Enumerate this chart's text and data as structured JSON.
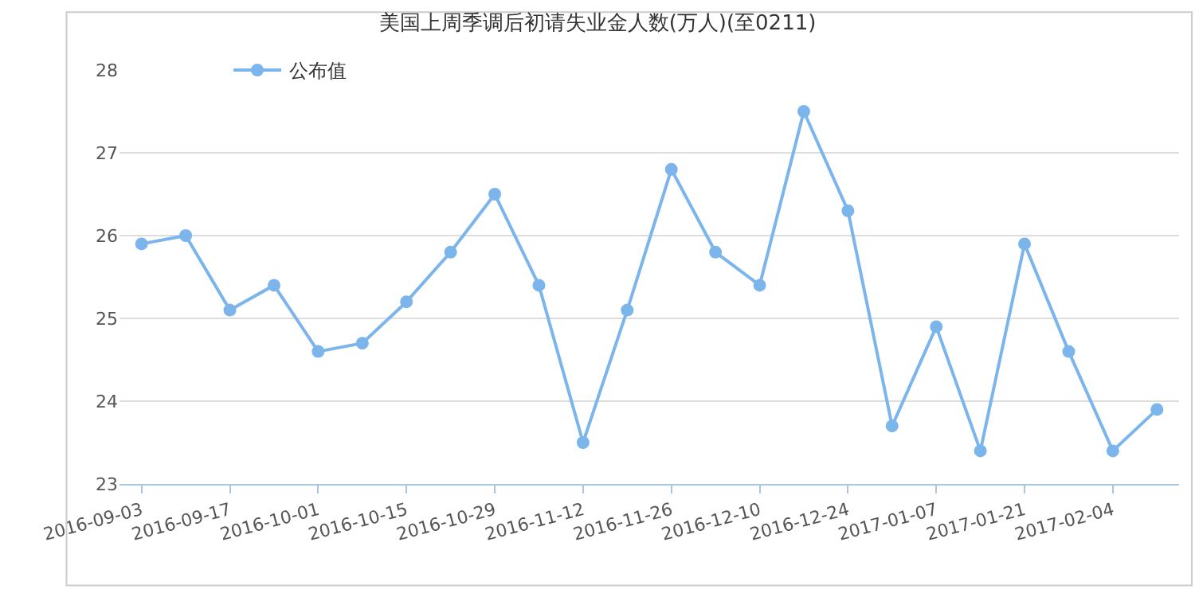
{
  "chart_data": {
    "type": "line",
    "title": "美国上周季调后初请失业金人数(万人)(至0211)",
    "categories": [
      "2016-09-03",
      null,
      "2016-09-17",
      null,
      "2016-10-01",
      null,
      "2016-10-15",
      null,
      "2016-10-29",
      null,
      "2016-11-12",
      null,
      "2016-11-26",
      null,
      "2016-12-10",
      null,
      "2016-12-24",
      null,
      "2017-01-07",
      null,
      "2017-01-21",
      null,
      "2017-02-04",
      null
    ],
    "series": [
      {
        "name": "公布值",
        "color": "#7cb5ec",
        "values": [
          25.9,
          26.0,
          25.1,
          25.4,
          24.6,
          24.7,
          25.2,
          25.8,
          26.5,
          25.4,
          23.5,
          25.1,
          26.8,
          25.8,
          25.4,
          27.5,
          26.3,
          23.7,
          24.9,
          23.4,
          25.9,
          24.6,
          23.4,
          23.9
        ]
      }
    ],
    "ylim": [
      23,
      28
    ],
    "yticks": [
      23,
      24,
      25,
      26,
      27,
      28
    ],
    "grid": "y",
    "legend": "top left",
    "marker": "circle",
    "line_style": "solid"
  }
}
